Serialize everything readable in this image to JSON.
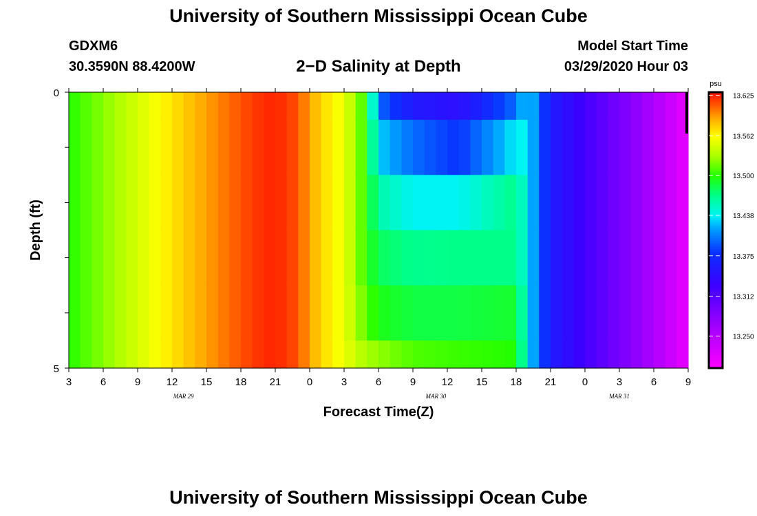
{
  "header": {
    "title": "University of Southern Mississippi Ocean Cube",
    "station": "GDXM6",
    "coords": "30.3590N 88.4200W",
    "subtitle": "2−D Salinity at Depth",
    "model_start_label": "Model Start Time",
    "model_start_value": "03/29/2020 Hour 03"
  },
  "footer": {
    "title": "University of Southern Mississippi Ocean Cube"
  },
  "chart_data": {
    "type": "heatmap",
    "xlabel": "Forecast Time(Z)",
    "ylabel": "Depth (ft)",
    "x_tick_labels": [
      "3",
      "6",
      "9",
      "12",
      "15",
      "18",
      "21",
      "0",
      "3",
      "6",
      "9",
      "12",
      "15",
      "18",
      "21",
      "0",
      "3",
      "6",
      "9"
    ],
    "date_labels": [
      {
        "label": "MAR  29",
        "hour_index": 10
      },
      {
        "label": "MAR  30",
        "hour_index": 32
      },
      {
        "label": "MAR  31",
        "hour_index": 48
      }
    ],
    "x_range_hours": [
      0,
      54
    ],
    "y_tick_labels": [
      {
        "label": "0",
        "depth": 0
      },
      {
        "label": "5",
        "depth": 5
      }
    ],
    "ylim": [
      0,
      5
    ],
    "depth_bins": [
      [
        0,
        0.5
      ],
      [
        0.5,
        1.5
      ],
      [
        1.5,
        2.5
      ],
      [
        2.5,
        3.5
      ],
      [
        3.5,
        4.5
      ],
      [
        4.5,
        5
      ]
    ],
    "times_hours": [
      0,
      1,
      2,
      3,
      4,
      5,
      6,
      7,
      8,
      9,
      10,
      11,
      12,
      13,
      14,
      15,
      16,
      17,
      18,
      19,
      20,
      21,
      22,
      23,
      24,
      25,
      26,
      27,
      28,
      29,
      30,
      31,
      32,
      33,
      34,
      35,
      36,
      37,
      38,
      39,
      40,
      41,
      42,
      43,
      44,
      45,
      46,
      47,
      48,
      49,
      50,
      51,
      52,
      53
    ],
    "profiles": {
      "anchors_hours": [
        0,
        4,
        8,
        11,
        14,
        16,
        18,
        20,
        21,
        22,
        23,
        24,
        26,
        27,
        30,
        34,
        39,
        40,
        42,
        45,
        50,
        54
      ],
      "salinity_by_bin": [
        [
          13.5,
          13.53,
          13.563,
          13.585,
          13.605,
          13.618,
          13.625,
          13.612,
          13.59,
          13.575,
          13.565,
          13.555,
          13.5,
          13.4,
          13.356,
          13.345,
          13.4,
          13.438,
          13.36,
          13.325,
          13.27,
          13.215
        ],
        [
          13.5,
          13.53,
          13.563,
          13.585,
          13.605,
          13.618,
          13.625,
          13.612,
          13.59,
          13.575,
          13.565,
          13.555,
          13.5,
          13.43,
          13.4,
          13.38,
          13.438,
          13.438,
          13.36,
          13.325,
          13.27,
          13.215
        ],
        [
          13.5,
          13.53,
          13.563,
          13.585,
          13.605,
          13.618,
          13.625,
          13.612,
          13.59,
          13.575,
          13.565,
          13.555,
          13.5,
          13.46,
          13.438,
          13.438,
          13.47,
          13.438,
          13.36,
          13.325,
          13.27,
          13.215
        ],
        [
          13.5,
          13.53,
          13.563,
          13.585,
          13.605,
          13.618,
          13.625,
          13.612,
          13.59,
          13.575,
          13.565,
          13.555,
          13.5,
          13.48,
          13.468,
          13.47,
          13.47,
          13.438,
          13.36,
          13.325,
          13.27,
          13.215
        ],
        [
          13.5,
          13.53,
          13.563,
          13.585,
          13.605,
          13.618,
          13.625,
          13.612,
          13.59,
          13.575,
          13.565,
          13.555,
          13.51,
          13.495,
          13.485,
          13.485,
          13.49,
          13.438,
          13.36,
          13.325,
          13.27,
          13.215
        ],
        [
          13.5,
          13.53,
          13.563,
          13.585,
          13.605,
          13.618,
          13.625,
          13.612,
          13.59,
          13.575,
          13.565,
          13.555,
          13.53,
          13.525,
          13.51,
          13.505,
          13.5,
          13.438,
          13.36,
          13.325,
          13.27,
          13.215
        ]
      ]
    },
    "colorbar": {
      "unit": "psu",
      "tick_labels": [
        "13.625",
        "13.562",
        "13.500",
        "13.438",
        "13.375",
        "13.312",
        "13.250"
      ],
      "tick_values": [
        13.625,
        13.562,
        13.5,
        13.438,
        13.375,
        13.312,
        13.25
      ],
      "range": [
        13.2,
        13.63
      ],
      "colormap": [
        [
          13.2,
          "#ff00ff"
        ],
        [
          13.27,
          "#9a00ff"
        ],
        [
          13.33,
          "#3c00ff"
        ],
        [
          13.38,
          "#0a30ff"
        ],
        [
          13.42,
          "#00a8ff"
        ],
        [
          13.438,
          "#00f4f4"
        ],
        [
          13.47,
          "#00ff88"
        ],
        [
          13.5,
          "#22ff00"
        ],
        [
          13.53,
          "#a8ff00"
        ],
        [
          13.562,
          "#ffff00"
        ],
        [
          13.59,
          "#ffa800"
        ],
        [
          13.61,
          "#ff5800"
        ],
        [
          13.63,
          "#ff1000"
        ]
      ]
    }
  }
}
